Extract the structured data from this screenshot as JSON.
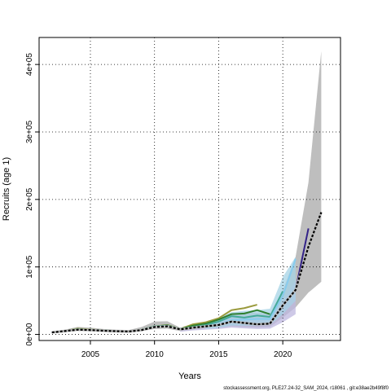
{
  "chart_data": {
    "type": "line",
    "xlabel": "Years",
    "ylabel": "Recruits (age 1)",
    "xlim": [
      2001,
      2024.5
    ],
    "ylim": [
      -9000,
      440000
    ],
    "x_ticks": [
      2005,
      2010,
      2015,
      2020
    ],
    "y_ticks": [
      {
        "value": 0,
        "label": "0e+00"
      },
      {
        "value": 100000,
        "label": "1e+05"
      },
      {
        "value": 200000,
        "label": "2e+05"
      },
      {
        "value": 300000,
        "label": "3e+05"
      },
      {
        "value": 400000,
        "label": "4e+05"
      }
    ],
    "grid": true,
    "footer": "stockassessment.org, PLE27.24-32_SAM_2024, r18061 , git:e38ae2b49f8f0",
    "confidence_band": {
      "color": "#bebebe",
      "x": [
        2002,
        2003,
        2004,
        2005,
        2006,
        2007,
        2008,
        2009,
        2010,
        2011,
        2012,
        2013,
        2014,
        2015,
        2016,
        2017,
        2018,
        2019,
        2020,
        2021,
        2022,
        2023
      ],
      "lower": [
        1500,
        3000,
        5500,
        5000,
        4000,
        3500,
        3000,
        5000,
        8000,
        8500,
        5000,
        7000,
        9000,
        10000,
        12000,
        11000,
        10000,
        11000,
        25000,
        40000,
        62000,
        78000
      ],
      "upper": [
        4500,
        7000,
        11000,
        10000,
        8000,
        7000,
        6500,
        11000,
        19000,
        19500,
        10000,
        15000,
        19000,
        24000,
        32000,
        33000,
        32000,
        31000,
        65000,
        115000,
        225000,
        420000
      ]
    },
    "peel_bands": [
      {
        "color": "#bdb7df",
        "x": [
          2012,
          2013,
          2014,
          2015,
          2016,
          2017,
          2018,
          2019,
          2020,
          2021
        ],
        "lower": [
          4000,
          6000,
          7000,
          8000,
          10000,
          9000,
          8000,
          8500,
          18000,
          30000
        ],
        "upper": [
          10000,
          13000,
          16000,
          20000,
          26000,
          26000,
          25000,
          25000,
          50000,
          80000
        ]
      },
      {
        "color": "#a6d3e6",
        "x": [
          2014,
          2015,
          2016,
          2017,
          2018,
          2019,
          2020,
          2021
        ],
        "lower": [
          8000,
          10000,
          13000,
          13000,
          13000,
          14000,
          30000,
          50000
        ],
        "upper": [
          18000,
          24000,
          33000,
          35000,
          36000,
          38000,
          85000,
          115000
        ]
      }
    ],
    "series": [
      {
        "color": "#9a9a3c",
        "x": [
          2002,
          2003,
          2004,
          2005,
          2006,
          2007,
          2008,
          2009,
          2010,
          2011,
          2012,
          2013,
          2014,
          2015,
          2016,
          2017,
          2018
        ],
        "values": [
          3000,
          5000,
          8500,
          7500,
          6000,
          5000,
          4500,
          7000,
          12000,
          14000,
          8000,
          15000,
          18000,
          24000,
          36000,
          39000,
          44000
        ]
      },
      {
        "color": "#2e7f2e",
        "x": [
          2002,
          2003,
          2004,
          2005,
          2006,
          2007,
          2008,
          2009,
          2010,
          2011,
          2012,
          2013,
          2014,
          2015,
          2016,
          2017,
          2018,
          2019
        ],
        "values": [
          3000,
          5000,
          8000,
          7000,
          6000,
          5000,
          4500,
          7000,
          12000,
          13500,
          8000,
          13000,
          16000,
          22000,
          30000,
          31000,
          36000,
          30000
        ]
      },
      {
        "color": "#44aa99",
        "x": [
          2002,
          2003,
          2004,
          2005,
          2006,
          2007,
          2008,
          2009,
          2010,
          2011,
          2012,
          2013,
          2014,
          2015,
          2016,
          2017,
          2018,
          2019,
          2020
        ],
        "values": [
          3000,
          5000,
          7500,
          7000,
          6000,
          5000,
          4500,
          7000,
          12000,
          13000,
          8000,
          11000,
          14000,
          19000,
          27000,
          25000,
          28000,
          26000,
          64000
        ]
      },
      {
        "color": "#88ccee",
        "x": [
          2002,
          2003,
          2004,
          2005,
          2006,
          2007,
          2008,
          2009,
          2010,
          2011,
          2012,
          2013,
          2014,
          2015,
          2016,
          2017,
          2018,
          2019,
          2020,
          2021
        ],
        "values": [
          3000,
          5000,
          7000,
          6500,
          5500,
          4800,
          4300,
          6500,
          11000,
          12500,
          7500,
          10000,
          12000,
          15000,
          21000,
          22000,
          23000,
          23000,
          57000,
          112000
        ]
      },
      {
        "color": "#332288",
        "x": [
          2002,
          2003,
          2004,
          2005,
          2006,
          2007,
          2008,
          2009,
          2010,
          2011,
          2012,
          2013,
          2014,
          2015,
          2016,
          2017,
          2018,
          2019,
          2020,
          2021,
          2022
        ],
        "values": [
          3000,
          5000,
          7000,
          6500,
          5500,
          4800,
          4300,
          6500,
          11000,
          12000,
          7500,
          10000,
          12000,
          14000,
          19000,
          17000,
          15000,
          16000,
          43000,
          66000,
          157000
        ]
      },
      {
        "color": "#000000",
        "dashed": true,
        "x": [
          2002,
          2003,
          2004,
          2005,
          2006,
          2007,
          2008,
          2009,
          2010,
          2011,
          2012,
          2013,
          2014,
          2015,
          2016,
          2017,
          2018,
          2019,
          2020,
          2021,
          2022,
          2023
        ],
        "values": [
          3000,
          5000,
          7000,
          6500,
          5500,
          4800,
          4300,
          6500,
          11000,
          12000,
          7500,
          10000,
          12000,
          14000,
          19000,
          17000,
          15000,
          16000,
          43000,
          66000,
          130000,
          181000
        ]
      }
    ]
  }
}
